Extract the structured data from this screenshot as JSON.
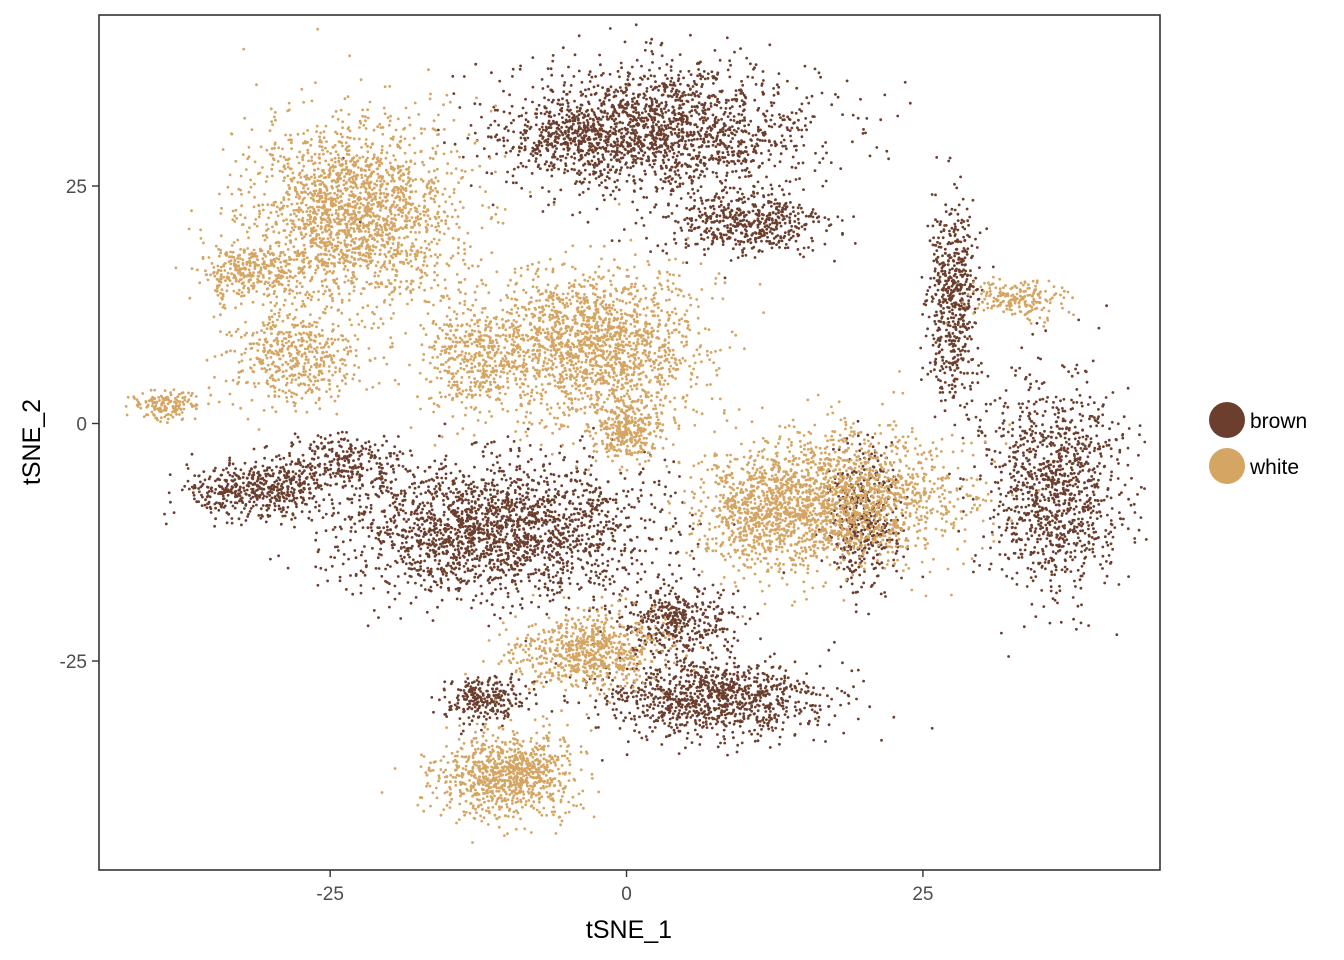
{
  "chart_data": {
    "type": "scatter",
    "title": "",
    "xlabel": "tSNE_1",
    "ylabel": "tSNE_2",
    "xlim": [
      -44.5,
      45
    ],
    "ylim": [
      -47,
      43
    ],
    "x_ticks": [
      -25,
      0,
      25
    ],
    "y_ticks": [
      -25,
      0,
      25
    ],
    "x_tick_labels": [
      "-25",
      "0",
      "25"
    ],
    "y_tick_labels": [
      "-25",
      "0",
      "25"
    ],
    "grid": false,
    "legend_position": "right",
    "colors": {
      "brown": "#6b3e2e",
      "white": "#d4a563"
    },
    "series": [
      {
        "name": "brown",
        "color": "#6b3e2e",
        "clusters": [
          {
            "cx": 3,
            "cy": 31,
            "rx": 13,
            "ry": 7,
            "n": 1700
          },
          {
            "cx": 10,
            "cy": 21,
            "rx": 7,
            "ry": 3.5,
            "n": 500
          },
          {
            "cx": -4,
            "cy": 30,
            "rx": 6,
            "ry": 3,
            "n": 300
          },
          {
            "cx": -11,
            "cy": -11,
            "rx": 13,
            "ry": 7,
            "n": 2100
          },
          {
            "cx": -31,
            "cy": -7,
            "rx": 6,
            "ry": 3,
            "n": 500
          },
          {
            "cx": -24,
            "cy": -4,
            "rx": 5,
            "ry": 3,
            "n": 250
          },
          {
            "cx": 36,
            "cy": -7,
            "rx": 6,
            "ry": 11,
            "n": 1100
          },
          {
            "cx": 27.5,
            "cy": 13,
            "rx": 2.2,
            "ry": 10,
            "n": 550
          },
          {
            "cx": 20,
            "cy": -10,
            "rx": 3,
            "ry": 7,
            "n": 450
          },
          {
            "cx": 7,
            "cy": -29,
            "rx": 10,
            "ry": 4,
            "n": 1000
          },
          {
            "cx": 4,
            "cy": -21,
            "rx": 5,
            "ry": 4,
            "n": 400
          },
          {
            "cx": -12,
            "cy": -29,
            "rx": 3.5,
            "ry": 2.5,
            "n": 250
          }
        ]
      },
      {
        "name": "white",
        "color": "#d4a563",
        "clusters": [
          {
            "cx": -23,
            "cy": 22,
            "rx": 9,
            "ry": 10,
            "n": 2000
          },
          {
            "cx": -32,
            "cy": 16,
            "rx": 4,
            "ry": 3,
            "n": 300
          },
          {
            "cx": -28,
            "cy": 7,
            "rx": 6,
            "ry": 5,
            "n": 500
          },
          {
            "cx": -39,
            "cy": 2,
            "rx": 2.5,
            "ry": 1.5,
            "n": 150
          },
          {
            "cx": -3,
            "cy": 8,
            "rx": 9,
            "ry": 8,
            "n": 1700
          },
          {
            "cx": -13,
            "cy": 7,
            "rx": 4.5,
            "ry": 6,
            "n": 400
          },
          {
            "cx": 0,
            "cy": -1,
            "rx": 3,
            "ry": 3,
            "n": 300
          },
          {
            "cx": 18,
            "cy": -8,
            "rx": 10,
            "ry": 7,
            "n": 1700
          },
          {
            "cx": 11,
            "cy": -10,
            "rx": 5,
            "ry": 6,
            "n": 500
          },
          {
            "cx": 33,
            "cy": 13,
            "rx": 4,
            "ry": 2,
            "n": 200
          },
          {
            "cx": -10,
            "cy": -37,
            "rx": 6,
            "ry": 4.5,
            "n": 900
          },
          {
            "cx": -3,
            "cy": -24,
            "rx": 6,
            "ry": 4,
            "n": 700
          }
        ]
      }
    ]
  },
  "legend": {
    "items": [
      {
        "label": "brown",
        "color": "#6b3e2e"
      },
      {
        "label": "white",
        "color": "#d4a563"
      }
    ]
  }
}
